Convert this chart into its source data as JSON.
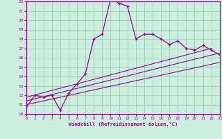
{
  "xlabel": "Windchill (Refroidissement éolien,°C)",
  "bg_color": "#cceedd",
  "grid_color": "#99ccbb",
  "line_color": "#990099",
  "xmin": 0,
  "xmax": 23,
  "ymin": 10,
  "ymax": 22,
  "main_x": [
    0,
    1,
    2,
    3,
    4,
    5,
    6,
    7,
    8,
    9,
    10,
    11,
    12,
    13,
    14,
    15,
    16,
    17,
    18,
    19,
    20,
    21,
    22,
    23
  ],
  "main_y": [
    10.8,
    12.0,
    11.8,
    12.0,
    10.4,
    12.2,
    13.2,
    14.3,
    18.0,
    18.5,
    22.3,
    21.8,
    21.5,
    18.0,
    18.5,
    18.5,
    18.0,
    17.4,
    17.8,
    17.0,
    16.8,
    17.3,
    16.8,
    16.3
  ],
  "line1_x": [
    0,
    23
  ],
  "line1_y": [
    11.0,
    15.5
  ],
  "line2_x": [
    0,
    23
  ],
  "line2_y": [
    11.4,
    16.5
  ],
  "line3_x": [
    0,
    22
  ],
  "line3_y": [
    11.8,
    17.0
  ]
}
